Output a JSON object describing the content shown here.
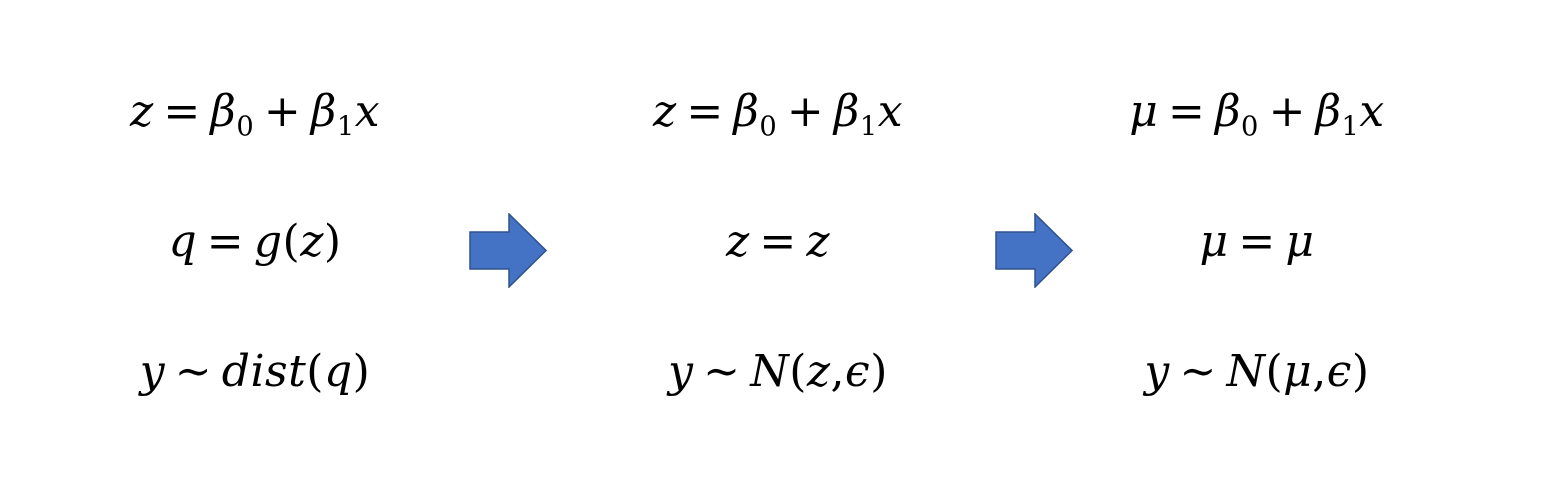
{
  "columns": [
    {
      "linear_lhs": "z",
      "beta": "β",
      "b0": "0",
      "b1": "1",
      "x": "x",
      "link_lhs": "q",
      "link_fn": "g",
      "link_arg": "z",
      "resp": "y",
      "dist_name": "dist",
      "dist_args": "q"
    },
    {
      "linear_lhs": "z",
      "beta": "β",
      "b0": "0",
      "b1": "1",
      "x": "x",
      "link_lhs": "z",
      "link_rhs": "z",
      "resp": "y",
      "dist_name": "N",
      "dist_arg1": "z",
      "dist_arg2": "ϵ"
    },
    {
      "linear_lhs": "μ",
      "beta": "β",
      "b0": "0",
      "b1": "1",
      "x": "x",
      "link_lhs": "μ",
      "link_rhs": "μ",
      "resp": "y",
      "dist_name": "N",
      "dist_arg1": "μ",
      "dist_arg2": "ϵ"
    }
  ],
  "symbols": {
    "equals": "=",
    "plus": "+",
    "tilde": "~",
    "lparen": "(",
    "rparen": ")",
    "comma": ","
  },
  "colors": {
    "arrow_fill": "#4472C4",
    "arrow_stroke": "#2F528F",
    "text": "#000000"
  },
  "icons": {
    "arrow": "right-arrow-icon"
  }
}
